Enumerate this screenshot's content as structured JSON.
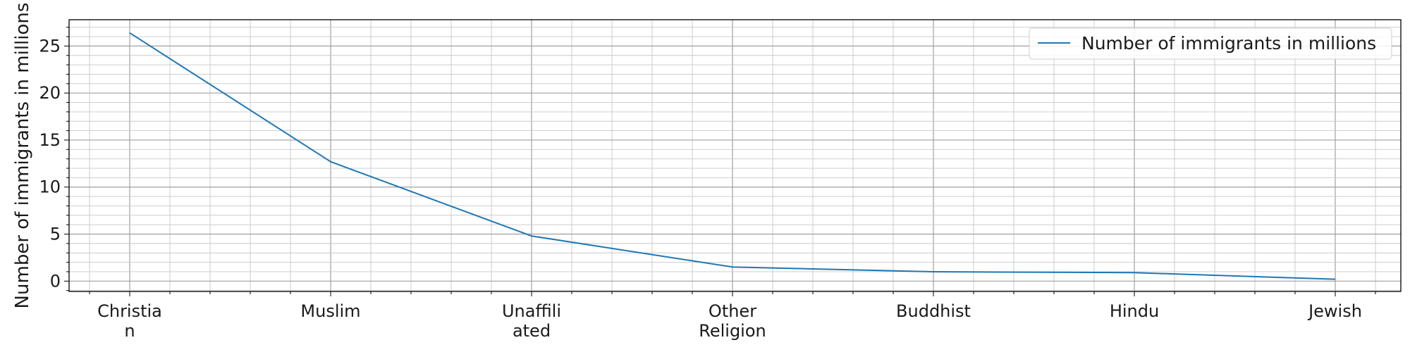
{
  "chart_data": {
    "type": "line",
    "categories": [
      [
        "Christia",
        "n"
      ],
      [
        "Muslim"
      ],
      [
        "Unaffili",
        "ated"
      ],
      [
        "Other",
        "Religion"
      ],
      [
        "Buddhist"
      ],
      [
        "Hindu"
      ],
      [
        "Jewish"
      ]
    ],
    "series": [
      {
        "name": "Number of immigrants in millions",
        "values": [
          26.4,
          12.7,
          4.8,
          1.5,
          1.0,
          0.9,
          0.2
        ],
        "color": "#1f77b4"
      }
    ],
    "title": "",
    "xlabel": "",
    "ylabel": "Number of immigrants in millions",
    "ylim": [
      -1.1,
      27.8
    ],
    "yticks": [
      0,
      5,
      10,
      15,
      20,
      25
    ],
    "grid": true,
    "minor_grid": true,
    "legend_position": "top-right"
  }
}
